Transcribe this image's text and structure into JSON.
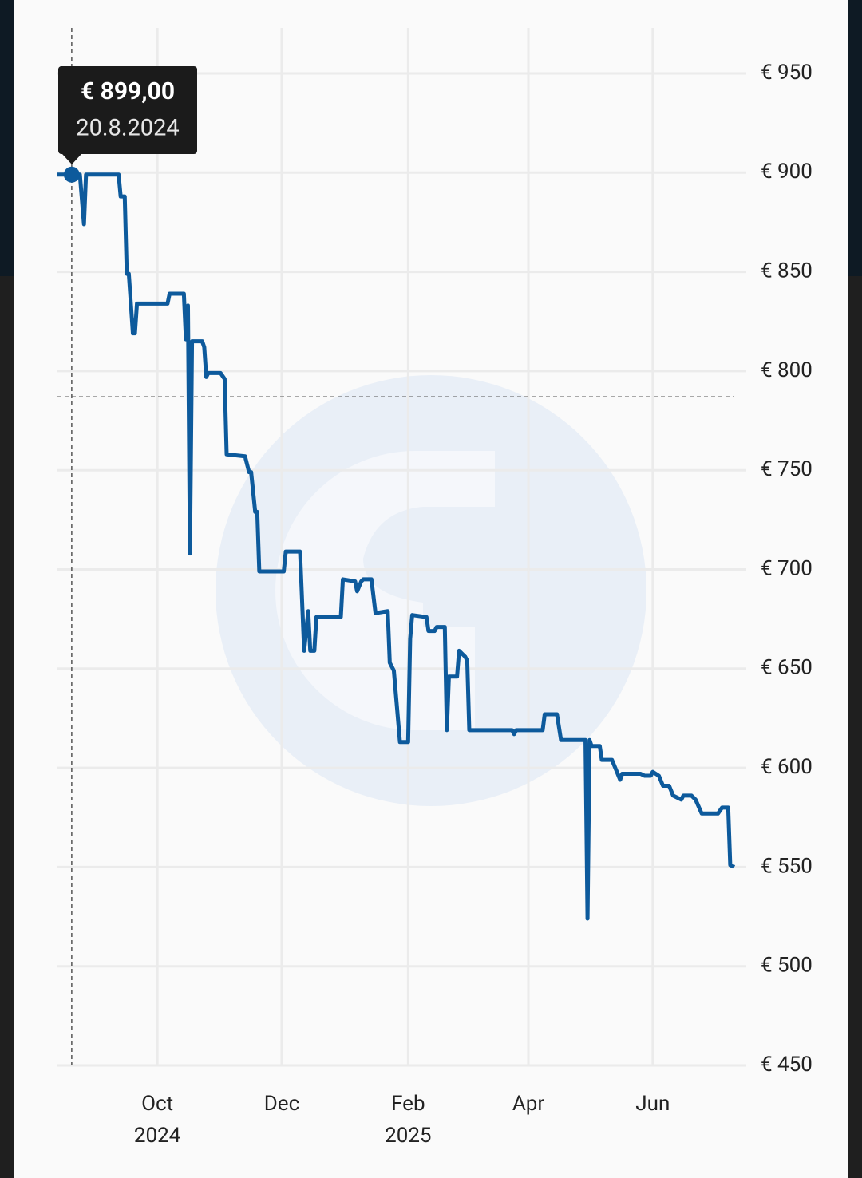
{
  "chart_data": {
    "type": "line",
    "color": "#0d5a9c",
    "xlim": [
      "2024-08-13",
      "2025-07-11"
    ],
    "ylim": [
      450,
      950
    ],
    "yticks": [
      {
        "value": 450,
        "label": "€ 450"
      },
      {
        "value": 500,
        "label": "€ 500"
      },
      {
        "value": 550,
        "label": "€ 550"
      },
      {
        "value": 600,
        "label": "€ 600"
      },
      {
        "value": 650,
        "label": "€ 650"
      },
      {
        "value": 700,
        "label": "€ 700"
      },
      {
        "value": 750,
        "label": "€ 750"
      },
      {
        "value": 800,
        "label": "€ 800"
      },
      {
        "value": 850,
        "label": "€ 850"
      },
      {
        "value": 900,
        "label": "€ 900"
      },
      {
        "value": 950,
        "label": "€ 950"
      }
    ],
    "xticks": [
      {
        "value": "2024-10-01",
        "label": "Oct"
      },
      {
        "value": "2024-12-01",
        "label": "Dec"
      },
      {
        "value": "2025-02-01",
        "label": "Feb"
      },
      {
        "value": "2025-04-01",
        "label": "Apr"
      },
      {
        "value": "2025-06-01",
        "label": "Jun"
      }
    ],
    "year_labels": [
      {
        "value": "2024-10-01",
        "label": "2024"
      },
      {
        "value": "2025-02-01",
        "label": "2025"
      }
    ],
    "grid": true,
    "crosshair_y": 787,
    "tooltip": {
      "x": "2024-08-20",
      "value": 899,
      "value_label": "€ 899,00",
      "date_label": "20.8.2024"
    },
    "x": [
      "2024-08-13",
      "2024-08-20",
      "2024-08-24",
      "2024-08-26",
      "2024-08-27",
      "2024-09-12",
      "2024-09-13",
      "2024-09-15",
      "2024-09-16",
      "2024-09-17",
      "2024-09-19",
      "2024-09-20",
      "2024-09-21",
      "2024-10-06",
      "2024-10-07",
      "2024-10-14",
      "2024-10-15",
      "2024-10-16",
      "2024-10-17",
      "2024-10-18",
      "2024-10-23",
      "2024-10-24",
      "2024-10-25",
      "2024-10-26",
      "2024-11-01",
      "2024-11-03",
      "2024-11-04",
      "2024-11-13",
      "2024-11-15",
      "2024-11-16",
      "2024-11-18",
      "2024-11-19",
      "2024-11-20",
      "2024-12-02",
      "2024-12-03",
      "2024-12-10",
      "2024-12-12",
      "2024-12-14",
      "2024-12-15",
      "2024-12-17",
      "2024-12-18",
      "2024-12-30",
      "2024-12-31",
      "2025-01-06",
      "2025-01-07",
      "2025-01-09",
      "2025-01-10",
      "2025-01-14",
      "2025-01-16",
      "2025-01-22",
      "2025-01-23",
      "2025-01-25",
      "2025-01-28",
      "2025-02-01",
      "2025-02-02",
      "2025-02-03",
      "2025-02-10",
      "2025-02-11",
      "2025-02-14",
      "2025-02-15",
      "2025-02-19",
      "2025-02-20",
      "2025-02-21",
      "2025-02-25",
      "2025-02-26",
      "2025-03-01",
      "2025-03-02",
      "2025-03-03",
      "2025-03-07",
      "2025-03-24",
      "2025-03-25",
      "2025-03-26",
      "2025-04-08",
      "2025-04-09",
      "2025-04-15",
      "2025-04-17",
      "2025-04-29",
      "2025-04-30",
      "2025-05-01",
      "2025-05-02",
      "2025-05-06",
      "2025-05-07",
      "2025-05-12",
      "2025-05-14",
      "2025-05-16",
      "2025-05-17",
      "2025-05-26",
      "2025-05-28",
      "2025-05-31",
      "2025-06-01",
      "2025-06-04",
      "2025-06-06",
      "2025-06-09",
      "2025-06-11",
      "2025-06-15",
      "2025-06-16",
      "2025-06-20",
      "2025-06-22",
      "2025-06-25",
      "2025-07-03",
      "2025-07-05",
      "2025-07-08",
      "2025-07-09",
      "2025-07-11"
    ],
    "values": [
      899,
      899,
      899,
      874,
      899,
      899,
      888,
      888,
      849,
      849,
      819,
      819,
      834,
      834,
      839,
      839,
      816,
      833,
      708,
      815,
      815,
      812,
      797,
      799,
      799,
      796,
      758,
      757,
      749,
      749,
      729,
      729,
      699,
      699,
      709,
      709,
      659,
      679,
      659,
      659,
      676,
      676,
      695,
      694,
      689,
      694,
      695,
      695,
      678,
      679,
      653,
      649,
      613,
      613,
      665,
      677,
      676,
      669,
      669,
      671,
      671,
      619,
      646,
      646,
      659,
      656,
      654,
      619,
      619,
      619,
      617,
      619,
      619,
      627,
      627,
      614,
      614,
      524,
      614,
      611,
      611,
      604,
      604,
      599,
      594,
      597,
      597,
      596,
      596,
      598,
      596,
      591,
      591,
      586,
      584,
      586,
      586,
      584,
      577,
      577,
      580,
      580,
      551,
      550
    ]
  }
}
